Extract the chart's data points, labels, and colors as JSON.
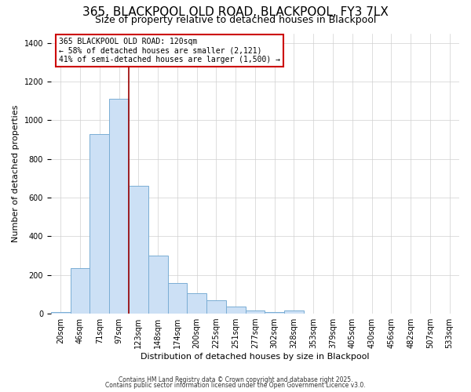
{
  "title": "365, BLACKPOOL OLD ROAD, BLACKPOOL, FY3 7LX",
  "subtitle": "Size of property relative to detached houses in Blackpool",
  "xlabel": "Distribution of detached houses by size in Blackpool",
  "ylabel": "Number of detached properties",
  "bar_labels": [
    "20sqm",
    "46sqm",
    "71sqm",
    "97sqm",
    "123sqm",
    "148sqm",
    "174sqm",
    "200sqm",
    "225sqm",
    "251sqm",
    "277sqm",
    "302sqm",
    "328sqm",
    "353sqm",
    "379sqm",
    "405sqm",
    "430sqm",
    "456sqm",
    "482sqm",
    "507sqm",
    "533sqm"
  ],
  "bar_values": [
    10,
    235,
    930,
    1110,
    660,
    300,
    160,
    105,
    68,
    38,
    18,
    7,
    15,
    2,
    0,
    0,
    0,
    0,
    0,
    0,
    2
  ],
  "bar_color": "#cce0f5",
  "bar_edge_color": "#7aadd4",
  "vline_color": "#990000",
  "annotation_title": "365 BLACKPOOL OLD ROAD: 120sqm",
  "annotation_line1": "← 58% of detached houses are smaller (2,121)",
  "annotation_line2": "41% of semi-detached houses are larger (1,500) →",
  "annotation_box_facecolor": "#ffffff",
  "annotation_box_edgecolor": "#cc0000",
  "ylim_max": 1450,
  "footnote1": "Contains HM Land Registry data © Crown copyright and database right 2025.",
  "footnote2": "Contains public sector information licensed under the Open Government Licence v3.0.",
  "bg_color": "#ffffff",
  "grid_color": "#d0d0d0",
  "title_fontsize": 11,
  "subtitle_fontsize": 9,
  "axis_label_fontsize": 8,
  "tick_fontsize": 7,
  "annot_fontsize": 7,
  "footnote_fontsize": 5.5
}
